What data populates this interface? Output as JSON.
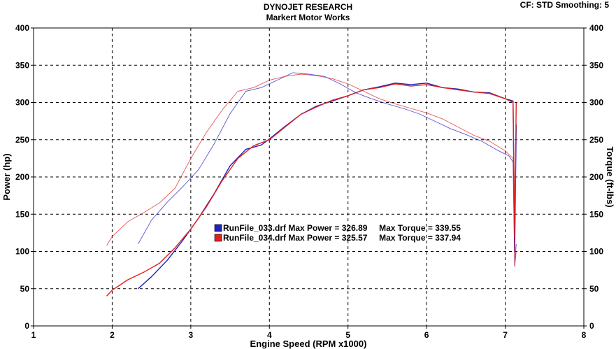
{
  "header": {
    "title": "DYNOJET RESEARCH",
    "subtitle": "Markert Motor Works",
    "cf_info": "CF: STD  Smoothing: 5"
  },
  "colors": {
    "run_033": "#2020c0",
    "run_034": "#e02020",
    "grid": "#000000",
    "background": "#ffffff"
  },
  "chart_data": {
    "type": "line",
    "title": "DYNOJET RESEARCH",
    "subtitle": "Markert Motor Works",
    "xlabel": "Engine Speed (RPM x1000)",
    "ylabel": "Power (hp)",
    "y2label": "Torque (ft-lbs)",
    "xlim": [
      1,
      8
    ],
    "ylim": [
      0,
      400
    ],
    "y2lim": [
      0,
      400
    ],
    "x_ticks": [
      "1",
      "2",
      "3",
      "4",
      "5",
      "6",
      "7",
      "8"
    ],
    "y_ticks": [
      "0",
      "50",
      "100",
      "150",
      "200",
      "250",
      "300",
      "350",
      "400"
    ],
    "grid": "dashed",
    "legend_placement": "center",
    "legend": [
      {
        "text": "RunFile_033.drf Max Power = 326.89     Max Torque = 339.55",
        "color": "#2020c0"
      },
      {
        "text": "RunFile_034.drf Max Power = 325.57     Max Torque = 337.94",
        "color": "#e02020"
      }
    ],
    "series": [
      {
        "name": "RunFile_033.drf",
        "quantity": "power",
        "color": "#2020c0",
        "x": [
          2.33,
          2.5,
          2.7,
          2.9,
          3.1,
          3.3,
          3.5,
          3.7,
          3.9,
          4.0,
          4.2,
          4.4,
          4.6,
          4.8,
          5.0,
          5.2,
          5.4,
          5.6,
          5.8,
          6.0,
          6.2,
          6.4,
          6.6,
          6.8,
          7.0,
          7.1,
          7.12,
          7.14
        ],
        "y": [
          50,
          66,
          88,
          115,
          145,
          178,
          215,
          237,
          243,
          251,
          268,
          284,
          295,
          302,
          309,
          317,
          321,
          326,
          324,
          326,
          320,
          318,
          314,
          313,
          305,
          302,
          100,
          270
        ]
      },
      {
        "name": "RunFile_034.drf",
        "quantity": "power",
        "color": "#e02020",
        "x": [
          1.93,
          2.0,
          2.2,
          2.4,
          2.6,
          2.8,
          3.0,
          3.2,
          3.4,
          3.6,
          3.8,
          4.0,
          4.2,
          4.4,
          4.6,
          4.8,
          5.0,
          5.2,
          5.4,
          5.6,
          5.8,
          6.0,
          6.2,
          6.4,
          6.6,
          6.8,
          7.0,
          7.1,
          7.12,
          7.14
        ],
        "y": [
          40,
          48,
          62,
          72,
          84,
          105,
          130,
          160,
          195,
          225,
          242,
          250,
          267,
          284,
          294,
          303,
          309,
          317,
          320,
          325,
          322,
          324,
          320,
          317,
          314,
          312,
          305,
          300,
          120,
          300
        ]
      },
      {
        "name": "RunFile_033.drf",
        "quantity": "torque",
        "color": "#2020c0",
        "x": [
          2.33,
          2.5,
          2.7,
          2.9,
          3.1,
          3.3,
          3.5,
          3.7,
          3.9,
          4.1,
          4.3,
          4.5,
          4.7,
          4.9,
          5.1,
          5.3,
          5.5,
          5.7,
          5.9,
          6.1,
          6.3,
          6.5,
          6.7,
          6.9,
          7.05,
          7.1,
          7.12,
          7.14
        ],
        "y": [
          110,
          142,
          166,
          187,
          210,
          245,
          285,
          315,
          320,
          330,
          340,
          338,
          335,
          325,
          313,
          305,
          298,
          292,
          285,
          275,
          265,
          257,
          248,
          236,
          228,
          220,
          80,
          110
        ]
      },
      {
        "name": "RunFile_034.drf",
        "quantity": "torque",
        "color": "#e02020",
        "x": [
          1.93,
          2.0,
          2.2,
          2.4,
          2.6,
          2.8,
          3.0,
          3.2,
          3.4,
          3.6,
          3.8,
          4.0,
          4.2,
          4.4,
          4.6,
          4.8,
          5.0,
          5.2,
          5.4,
          5.6,
          5.8,
          6.0,
          6.2,
          6.4,
          6.6,
          6.8,
          7.0,
          7.1,
          7.12,
          7.14
        ],
        "y": [
          108,
          120,
          140,
          152,
          165,
          185,
          225,
          260,
          290,
          315,
          320,
          330,
          335,
          338,
          336,
          332,
          325,
          315,
          305,
          298,
          292,
          286,
          278,
          267,
          256,
          248,
          235,
          225,
          80,
          100
        ]
      }
    ]
  }
}
